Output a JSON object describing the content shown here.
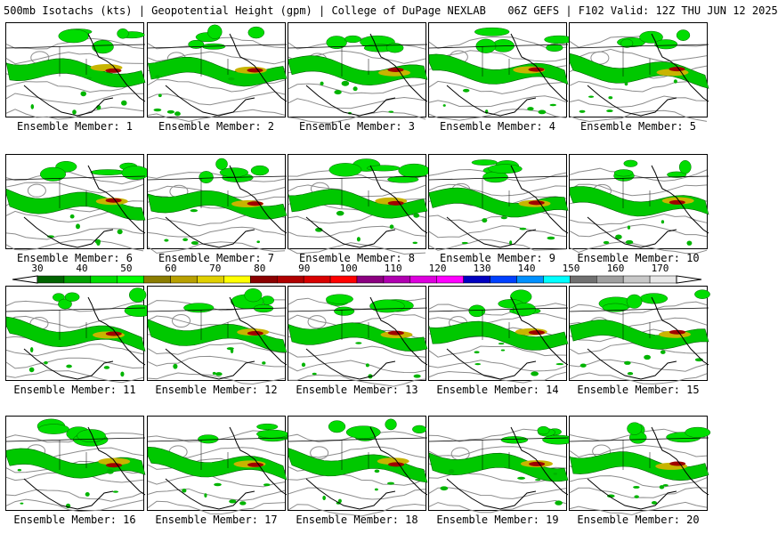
{
  "header": {
    "left": "500mb Isotachs (kts) | Geopotential Height (gpm) | College of DuPage NEXLAB",
    "right": "06Z GEFS | F102 Valid: 12Z THU JUN 12 2025"
  },
  "panels": [
    {
      "label": "Ensemble Member: 1"
    },
    {
      "label": "Ensemble Member: 2"
    },
    {
      "label": "Ensemble Member: 3"
    },
    {
      "label": "Ensemble Member: 4"
    },
    {
      "label": "Ensemble Member: 5"
    },
    {
      "label": "Ensemble Member: 6"
    },
    {
      "label": "Ensemble Member: 7"
    },
    {
      "label": "Ensemble Member: 8"
    },
    {
      "label": "Ensemble Member: 9"
    },
    {
      "label": "Ensemble Member: 10"
    },
    {
      "label": "Ensemble Member: 11"
    },
    {
      "label": "Ensemble Member: 12"
    },
    {
      "label": "Ensemble Member: 13"
    },
    {
      "label": "Ensemble Member: 14"
    },
    {
      "label": "Ensemble Member: 15"
    },
    {
      "label": "Ensemble Member: 16"
    },
    {
      "label": "Ensemble Member: 17"
    },
    {
      "label": "Ensemble Member: 18"
    },
    {
      "label": "Ensemble Member: 19"
    },
    {
      "label": "Ensemble Member: 20"
    }
  ],
  "colorbar": {
    "ticks": [
      "30",
      "40",
      "50",
      "60",
      "70",
      "80",
      "90",
      "100",
      "110",
      "120",
      "130",
      "140",
      "150",
      "160",
      "170"
    ],
    "colors": [
      "#006400",
      "#00a000",
      "#00dd00",
      "#00ff00",
      "#8b7d00",
      "#b8a000",
      "#e0d000",
      "#ffff00",
      "#8b0000",
      "#b00000",
      "#d80000",
      "#ff0000",
      "#8b0080",
      "#b000b0",
      "#dd00dd",
      "#ff00ff",
      "#0000c0",
      "#0040ff",
      "#0090ff",
      "#00ffff",
      "#707070",
      "#a0a0a0",
      "#c8c8c8",
      "#e8e8e8"
    ]
  }
}
